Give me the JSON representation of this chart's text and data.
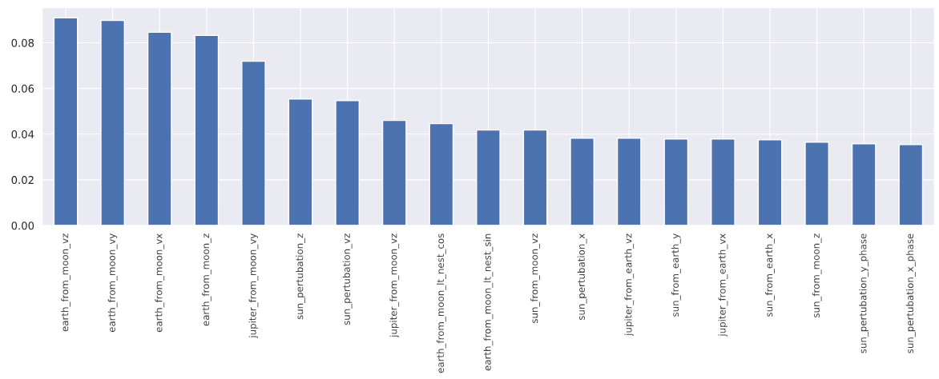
{
  "chart_data": {
    "type": "bar",
    "categories": [
      "earth_from_moon_vz",
      "earth_from_moon_vy",
      "earth_from_moon_vx",
      "earth_from_moon_z",
      "jupiter_from_moon_vy",
      "sun_pertubation_z",
      "sun_pertubation_vz",
      "jupiter_from_moon_vz",
      "earth_from_moon_lt_nest_cos",
      "earth_from_moon_lt_nest_sin",
      "sun_from_moon_vz",
      "sun_pertubation_x",
      "jupiter_from_earth_vz",
      "sun_from_earth_y",
      "jupiter_from_earth_vx",
      "sun_from_earth_x",
      "sun_from_moon_z",
      "sun_pertubation_y_phase",
      "sun_pertubation_x_phase"
    ],
    "values": [
      0.0909,
      0.0898,
      0.0846,
      0.0832,
      0.0719,
      0.0554,
      0.0547,
      0.046,
      0.0446,
      0.0418,
      0.0418,
      0.0382,
      0.0382,
      0.0379,
      0.0379,
      0.0375,
      0.0365,
      0.0358,
      0.0354
    ],
    "color": "#4c72b0",
    "ylim": [
      0,
      0.0954
    ],
    "yticks": [
      {
        "value": 0,
        "label": "0.00"
      },
      {
        "value": 0.02,
        "label": "0.02"
      },
      {
        "value": 0.04,
        "label": "0.04"
      },
      {
        "value": 0.06,
        "label": "0.06"
      },
      {
        "value": 0.08,
        "label": "0.08"
      }
    ],
    "grid": true
  }
}
